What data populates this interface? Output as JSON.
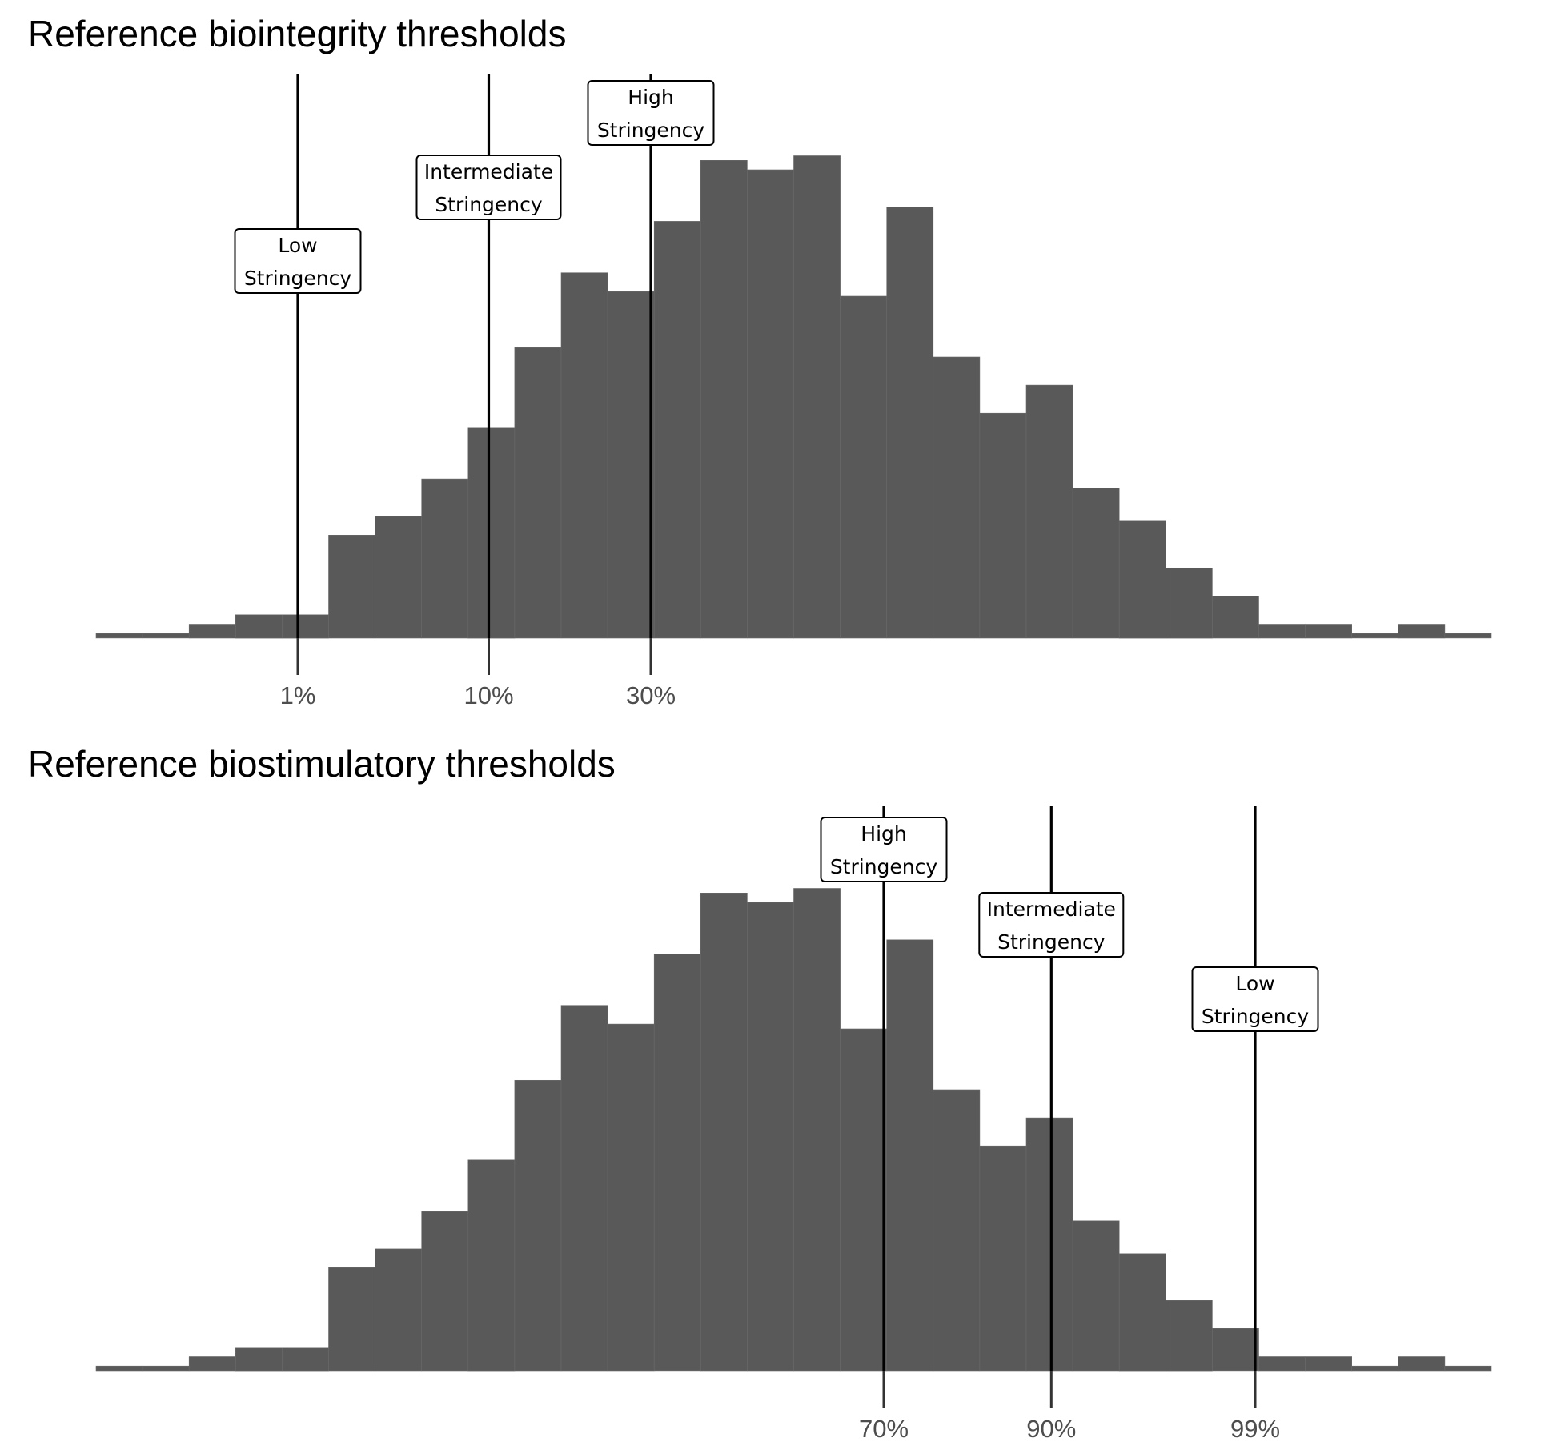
{
  "chart_data": [
    {
      "type": "histogram",
      "title": "Reference biointegrity thresholds",
      "bar_color": "#595959",
      "bins": 30,
      "counts": [
        1,
        1,
        3,
        5,
        5,
        22,
        26,
        34,
        45,
        62,
        78,
        74,
        89,
        102,
        100,
        103,
        73,
        92,
        60,
        48,
        54,
        32,
        25,
        15,
        9,
        3,
        3,
        1,
        3,
        1
      ],
      "thresholds": [
        {
          "percentile": 1,
          "tick_label": "1%",
          "label_line1": "Low",
          "label_line2": "Stringency"
        },
        {
          "percentile": 10,
          "tick_label": "10%",
          "label_line1": "Intermediate",
          "label_line2": "Stringency"
        },
        {
          "percentile": 30,
          "tick_label": "30%",
          "label_line1": "High",
          "label_line2": "Stringency"
        }
      ]
    },
    {
      "type": "histogram",
      "title": "Reference biostimulatory thresholds",
      "bar_color": "#595959",
      "bins": 30,
      "counts": [
        1,
        1,
        3,
        5,
        5,
        22,
        26,
        34,
        45,
        62,
        78,
        74,
        89,
        102,
        100,
        103,
        73,
        92,
        60,
        48,
        54,
        32,
        25,
        15,
        9,
        3,
        3,
        1,
        3,
        1
      ],
      "thresholds": [
        {
          "percentile": 70,
          "tick_label": "70%",
          "label_line1": "High",
          "label_line2": "Stringency"
        },
        {
          "percentile": 90,
          "tick_label": "90%",
          "label_line1": "Intermediate",
          "label_line2": "Stringency"
        },
        {
          "percentile": 99,
          "tick_label": "99%",
          "label_line1": "Low",
          "label_line2": "Stringency"
        }
      ]
    }
  ]
}
